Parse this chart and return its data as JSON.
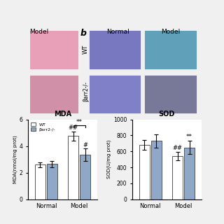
{
  "mda_title": "MDA",
  "sod_title": "SOD",
  "mda_ylabel": "MDA(nmol/mg prot)",
  "sod_ylabel": "SOD(U/mg prot)",
  "categories": [
    "Normal",
    "Model"
  ],
  "mda_wt": [
    2.6,
    4.75
  ],
  "mda_barr": [
    2.65,
    3.35
  ],
  "mda_wt_err": [
    0.2,
    0.35
  ],
  "mda_barr_err": [
    0.25,
    0.45
  ],
  "mda_ylim": [
    0,
    6
  ],
  "mda_yticks": [
    0,
    2,
    4,
    6
  ],
  "sod_wt": [
    680,
    540
  ],
  "sod_barr": [
    730,
    650
  ],
  "sod_wt_err": [
    60,
    50
  ],
  "sod_barr_err": [
    80,
    80
  ],
  "sod_ylim": [
    0,
    1000
  ],
  "sod_yticks": [
    0,
    200,
    400,
    600,
    800,
    1000
  ],
  "wt_color": "#ffffff",
  "barr_color": "#8fa8c8",
  "bar_edgecolor": "#555555",
  "bar_width": 0.32,
  "legend_labels": [
    "WT",
    "βarr2-/-"
  ],
  "sig_mda_bracket": [
    1,
    2
  ],
  "fig_bg": "#f5f5f5",
  "left_panel_label": "Model",
  "panel_b_label": "b",
  "wt_label": "WT",
  "barr2_label": "βarr2-/-"
}
